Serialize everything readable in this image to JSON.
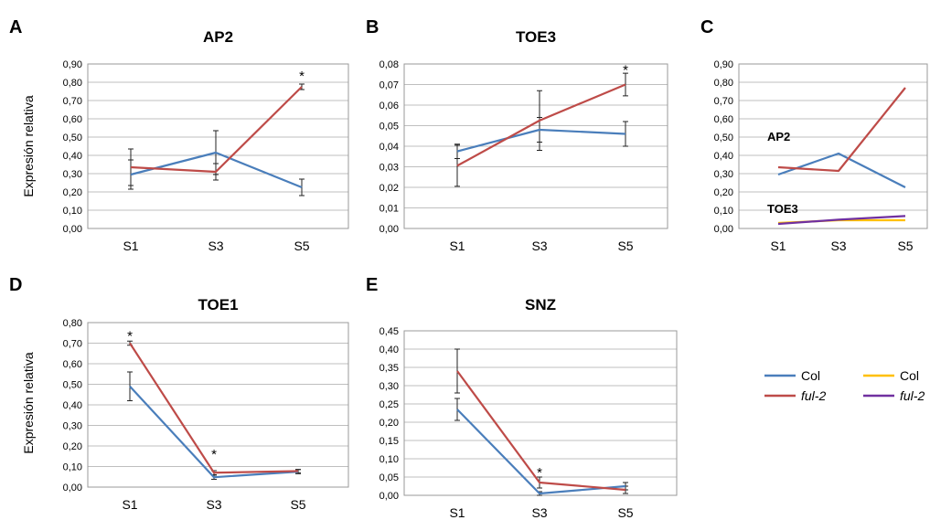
{
  "legend": [
    {
      "label": "Col",
      "italic": false,
      "color": "#4a7ebb"
    },
    {
      "label": "ful-2",
      "italic": true,
      "color": "#be4b48"
    },
    {
      "label": "Col",
      "italic": false,
      "color": "#ffc000"
    },
    {
      "label": "ful-2",
      "italic": true,
      "color": "#7030a0"
    }
  ],
  "chart_data": [
    {
      "panel": "A",
      "type": "line",
      "title": "AP2",
      "ylabel": "Expresión relativa",
      "categories": [
        "S1",
        "S3",
        "S5"
      ],
      "ylim": [
        0,
        0.9
      ],
      "ystep": 0.1,
      "decimals": 2,
      "grid": true,
      "yticks": [
        "0,00",
        "0,10",
        "0,20",
        "0,30",
        "0,40",
        "0,50",
        "0,60",
        "0,70",
        "0,80",
        "0,90"
      ],
      "series": [
        {
          "name": "Col",
          "color": "#4a7ebb",
          "values": [
            0.295,
            0.415,
            0.225
          ],
          "errors": [
            0.08,
            0.12,
            0.045
          ]
        },
        {
          "name": "ful-2",
          "color": "#be4b48",
          "values": [
            0.335,
            0.31,
            0.775
          ],
          "errors": [
            0.1,
            0.045,
            0.015
          ]
        }
      ],
      "annotations": [
        {
          "text": "*",
          "category": "S5",
          "y": 0.84
        }
      ]
    },
    {
      "panel": "B",
      "type": "line",
      "title": "TOE3",
      "ylabel": "",
      "categories": [
        "S1",
        "S3",
        "S5"
      ],
      "ylim": [
        0,
        0.08
      ],
      "ystep": 0.01,
      "decimals": 2,
      "grid": true,
      "yticks": [
        "0,00",
        "0,01",
        "0,02",
        "0,03",
        "0,04",
        "0,05",
        "0,06",
        "0,07",
        "0,08"
      ],
      "series": [
        {
          "name": "Col",
          "color": "#4a7ebb",
          "values": [
            0.0375,
            0.048,
            0.046
          ],
          "errors": [
            0.0035,
            0.006,
            0.006
          ]
        },
        {
          "name": "ful-2",
          "color": "#be4b48",
          "values": [
            0.0305,
            0.0525,
            0.07
          ],
          "errors": [
            0.01,
            0.0145,
            0.0055
          ]
        }
      ],
      "annotations": [
        {
          "text": "*",
          "category": "S5",
          "y": 0.0775
        }
      ]
    },
    {
      "panel": "C",
      "type": "line",
      "title": "",
      "ylabel": "",
      "categories": [
        "S1",
        "S3",
        "S5"
      ],
      "ylim": [
        0,
        0.9
      ],
      "ystep": 0.1,
      "decimals": 2,
      "grid": true,
      "yticks": [
        "0,00",
        "0,10",
        "0,20",
        "0,30",
        "0,40",
        "0,50",
        "0,60",
        "0,70",
        "0,80",
        "0,90"
      ],
      "series": [
        {
          "name": "Col",
          "color": "#4a7ebb",
          "values": [
            0.295,
            0.41,
            0.225
          ]
        },
        {
          "name": "ful-2",
          "color": "#be4b48",
          "values": [
            0.335,
            0.315,
            0.77
          ]
        },
        {
          "name": "Col",
          "color": "#ffc000",
          "values": [
            0.03,
            0.045,
            0.045
          ]
        },
        {
          "name": "ful-2",
          "color": "#7030a0",
          "values": [
            0.025,
            0.048,
            0.068
          ]
        }
      ],
      "text_labels": [
        {
          "text": "AP2",
          "category": "S1",
          "y": 0.5
        },
        {
          "text": "TOE3",
          "category": "S1",
          "y": 0.105
        }
      ]
    },
    {
      "panel": "D",
      "type": "line",
      "title": "TOE1",
      "ylabel": "Expresión relativa",
      "categories": [
        "S1",
        "S3",
        "S5"
      ],
      "ylim": [
        0,
        0.8
      ],
      "ystep": 0.1,
      "decimals": 2,
      "grid": true,
      "yticks": [
        "0,00",
        "0,10",
        "0,20",
        "0,30",
        "0,40",
        "0,50",
        "0,60",
        "0,70",
        "0,80"
      ],
      "series": [
        {
          "name": "Col",
          "color": "#4a7ebb",
          "values": [
            0.49,
            0.048,
            0.075
          ],
          "errors": [
            0.07,
            0.01,
            0.01
          ]
        },
        {
          "name": "ful-2",
          "color": "#be4b48",
          "values": [
            0.7,
            0.07,
            0.078
          ],
          "errors": [
            0.01,
            0.01,
            0.008
          ]
        }
      ],
      "annotations": [
        {
          "text": "*",
          "category": "S1",
          "y": 0.74
        },
        {
          "text": "*",
          "category": "S3",
          "y": 0.165
        }
      ]
    },
    {
      "panel": "E",
      "type": "line",
      "title": "SNZ",
      "ylabel": "",
      "categories": [
        "S1",
        "S3",
        "S5"
      ],
      "ylim": [
        0,
        0.45
      ],
      "ystep": 0.05,
      "decimals": 2,
      "grid": true,
      "yticks": [
        "0,00",
        "0,05",
        "0,10",
        "0,15",
        "0,20",
        "0,25",
        "0,30",
        "0,35",
        "0,40",
        "0,45"
      ],
      "series": [
        {
          "name": "Col",
          "color": "#4a7ebb",
          "values": [
            0.235,
            0.005,
            0.025
          ],
          "errors": [
            0.03,
            0.005,
            0.01
          ]
        },
        {
          "name": "ful-2",
          "color": "#be4b48",
          "values": [
            0.34,
            0.035,
            0.015
          ],
          "errors": [
            0.06,
            0.015,
            0.01
          ]
        }
      ],
      "annotations": [
        {
          "text": "*",
          "category": "S3",
          "y": 0.065
        }
      ]
    }
  ]
}
